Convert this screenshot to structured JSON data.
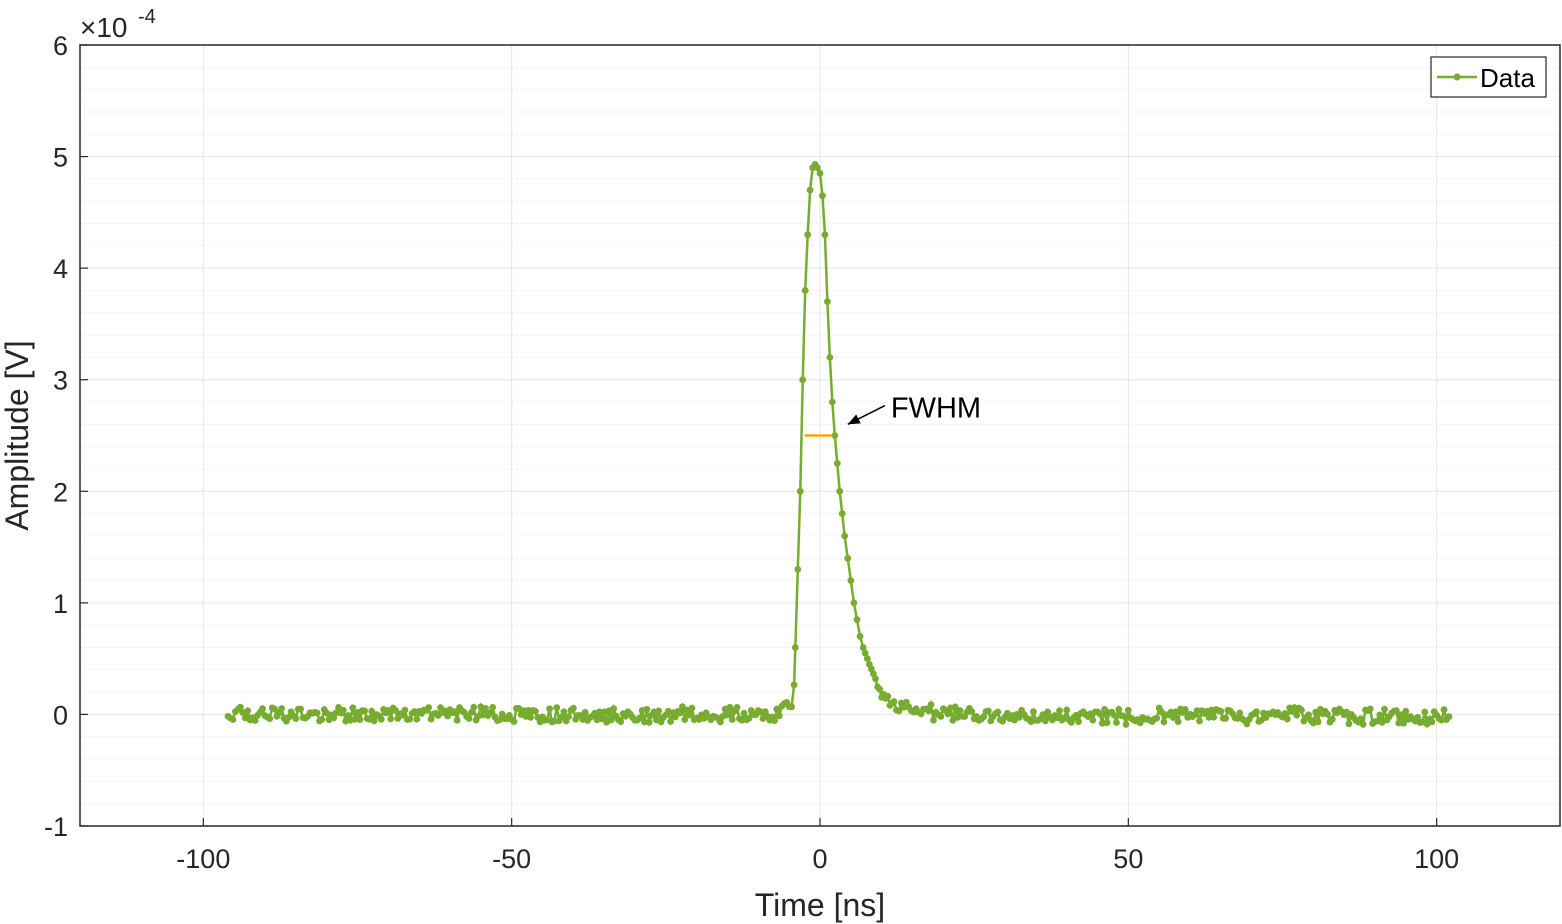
{
  "chart_data": {
    "type": "line",
    "title": "",
    "xlabel": "Time [ns]",
    "ylabel": "Amplitude [V]",
    "xlim": [
      -120,
      120
    ],
    "ylim": [
      -1,
      6
    ],
    "x_ticks": [
      -100,
      -50,
      0,
      50,
      100
    ],
    "x_tick_labels": [
      "-100",
      "-50",
      "0",
      "50",
      "100"
    ],
    "y_ticks": [
      -1,
      0,
      1,
      2,
      3,
      4,
      5,
      6
    ],
    "y_tick_labels": [
      "-1",
      "0",
      "1",
      "2",
      "3",
      "4",
      "5",
      "6"
    ],
    "y_multiplier": "×10",
    "y_multiplier_exponent": "-4",
    "grid": true,
    "minor_grid": true,
    "legend_position": "top-right",
    "colors": {
      "series": "#77ac30",
      "fwhm": "#ffa500",
      "grid": "#e6e6e6",
      "axis": "#262626"
    },
    "series": [
      {
        "name": "Data",
        "marker": "dot",
        "x": [
          -96,
          -90,
          -85,
          -80,
          -75,
          -70,
          -65,
          -60,
          -55,
          -50,
          -45,
          -40,
          -35,
          -30,
          -25,
          -20,
          -15,
          -10,
          -7,
          -5,
          -4.2,
          -4,
          -3.6,
          -3.2,
          -2.8,
          -2.4,
          -2.0,
          -1.6,
          -1.2,
          -0.8,
          -0.4,
          0,
          0.4,
          0.8,
          1.2,
          1.6,
          2.0,
          2.4,
          2.8,
          3.2,
          3.6,
          4.0,
          4.5,
          5.0,
          5.5,
          6.0,
          6.5,
          7.0,
          8.0,
          9.0,
          10,
          11,
          12,
          14,
          16,
          18,
          20,
          25,
          30,
          35,
          40,
          45,
          50,
          55,
          60,
          65,
          70,
          75,
          80,
          85,
          90,
          95,
          100,
          102
        ],
        "y": [
          0.0,
          0.0,
          0.0,
          0.0,
          0.0,
          0.0,
          0.0,
          0.0,
          0.0,
          0.0,
          0.0,
          0.0,
          0.0,
          0.0,
          0.0,
          0.0,
          0.0,
          0.0,
          0.0,
          0.05,
          0.2,
          0.6,
          1.3,
          2.0,
          3.0,
          3.8,
          4.3,
          4.7,
          4.9,
          4.93,
          4.9,
          4.85,
          4.65,
          4.3,
          3.7,
          3.2,
          2.8,
          2.5,
          2.25,
          2.0,
          1.8,
          1.6,
          1.4,
          1.2,
          1.0,
          0.85,
          0.7,
          0.6,
          0.45,
          0.32,
          0.22,
          0.15,
          0.1,
          0.06,
          0.03,
          0.02,
          0.0,
          0.0,
          0.0,
          0.0,
          0.0,
          -0.02,
          -0.02,
          0.0,
          0.0,
          0.0,
          -0.02,
          0.0,
          -0.02,
          -0.02,
          -0.02,
          -0.02,
          -0.02,
          -0.02
        ]
      }
    ],
    "fwhm_segment": {
      "x": [
        -2.5,
        2.0
      ],
      "y": [
        2.5,
        2.5
      ]
    },
    "annotation": {
      "text": "FWHM",
      "x": 11.5,
      "y": 2.75,
      "arrow_to": [
        4.5,
        2.6
      ]
    }
  }
}
